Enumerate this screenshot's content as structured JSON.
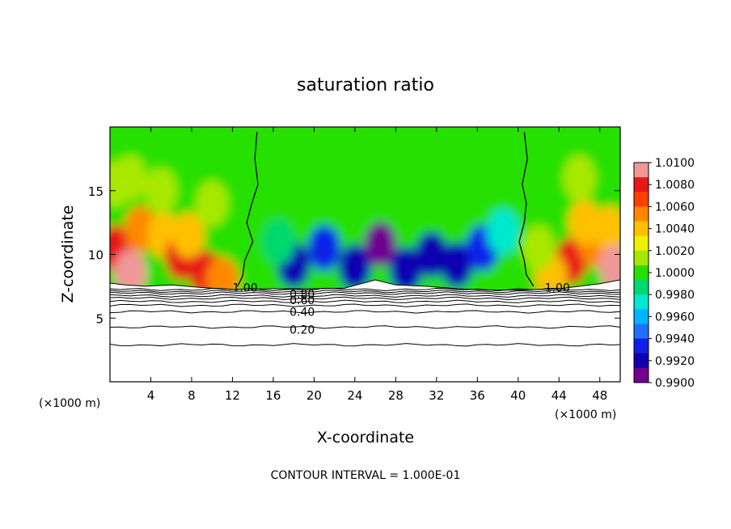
{
  "chart_data": {
    "type": "heatmap",
    "title": "saturation ratio",
    "xlabel": "X-coordinate",
    "ylabel": "Z-coordinate",
    "x_unit_label": "(×1000 m)",
    "y_unit_label": "(×1000 m)",
    "xlim": [
      0,
      50
    ],
    "ylim": [
      0,
      20
    ],
    "x_ticks": [
      4,
      8,
      12,
      16,
      20,
      24,
      28,
      32,
      36,
      40,
      44,
      48
    ],
    "y_ticks": [
      5,
      10,
      15
    ],
    "footer": "CONTOUR INTERVAL = 1.000E-01",
    "colorbar": {
      "min": 0.99,
      "max": 1.01,
      "tick_labels": [
        "1.0100",
        "1.0080",
        "1.0060",
        "1.0040",
        "1.0020",
        "1.0000",
        "0.9980",
        "0.9960",
        "0.9940",
        "0.9920",
        "0.9900"
      ],
      "colors": [
        "#f09898",
        "#e81818",
        "#ff4000",
        "#ff8800",
        "#ffc000",
        "#f0f000",
        "#a8e800",
        "#28e000",
        "#00d870",
        "#00e8d0",
        "#00b4ff",
        "#2070ff",
        "#1020e8",
        "#1000b0",
        "#700090"
      ]
    },
    "contour_labels": [
      {
        "text": "1.00",
        "x": 12.0,
        "z": 7.4
      },
      {
        "text": "1.00",
        "x": 42.6,
        "z": 7.4
      },
      {
        "text": "0.80",
        "x": 17.6,
        "z": 6.9
      },
      {
        "text": "0.60",
        "x": 17.6,
        "z": 6.4
      },
      {
        "text": "0.40",
        "x": 17.6,
        "z": 5.5
      },
      {
        "text": "0.20",
        "x": 17.6,
        "z": 4.1
      }
    ],
    "contour_levels_below": [
      {
        "z": 7.25
      },
      {
        "z": 7.1
      },
      {
        "z": 6.95
      },
      {
        "z": 6.75
      },
      {
        "z": 6.55
      },
      {
        "z": 6.3
      },
      {
        "z": 6.0
      },
      {
        "z": 5.5
      },
      {
        "z": 4.3
      },
      {
        "z": 2.9
      }
    ],
    "boundary_lines": [
      {
        "points": [
          [
            14.4,
            19.6
          ],
          [
            14.2,
            17.5
          ],
          [
            14.5,
            15.5
          ],
          [
            13.9,
            14.0
          ],
          [
            13.4,
            12.5
          ],
          [
            14.0,
            11.0
          ],
          [
            13.2,
            9.5
          ],
          [
            13.0,
            8.3
          ],
          [
            12.5,
            7.5
          ]
        ]
      },
      {
        "points": [
          [
            40.6,
            19.6
          ],
          [
            40.9,
            17.5
          ],
          [
            40.4,
            15.5
          ],
          [
            40.8,
            14.0
          ],
          [
            40.6,
            12.5
          ],
          [
            40.1,
            11.0
          ],
          [
            40.6,
            9.5
          ],
          [
            40.8,
            8.4
          ],
          [
            41.5,
            7.5
          ]
        ]
      }
    ],
    "anomalies": [
      {
        "x": 0.5,
        "z": 10.5,
        "value": 1.0085
      },
      {
        "x": 2.0,
        "z": 8.6,
        "value": 1.0095
      },
      {
        "x": 3.0,
        "z": 12.0,
        "value": 1.0052
      },
      {
        "x": 5.3,
        "z": 11.5,
        "value": 1.0045
      },
      {
        "x": 7.0,
        "z": 9.8,
        "value": 1.0078
      },
      {
        "x": 7.7,
        "z": 11.5,
        "value": 1.004
      },
      {
        "x": 9.4,
        "z": 8.5,
        "value": 1.008
      },
      {
        "x": 11.0,
        "z": 8.0,
        "value": 1.005
      },
      {
        "x": 5.0,
        "z": 15.0,
        "value": 1.0014
      },
      {
        "x": 2.0,
        "z": 16.0,
        "value": 1.0012
      },
      {
        "x": 10.0,
        "z": 14.0,
        "value": 1.0009
      },
      {
        "x": 0.5,
        "z": 15.5,
        "value": 1.0012
      },
      {
        "x": 25.0,
        "z": 16.5,
        "value": 0.99945
      },
      {
        "x": 34.0,
        "z": 16.0,
        "value": 0.9996
      },
      {
        "x": 19.0,
        "z": 12.5,
        "value": 0.9994
      },
      {
        "x": 20.5,
        "z": 14.5,
        "value": 0.9998
      },
      {
        "x": 18.0,
        "z": 9.2,
        "value": 0.9925
      },
      {
        "x": 21.0,
        "z": 10.5,
        "value": 0.994
      },
      {
        "x": 24.0,
        "z": 9.0,
        "value": 0.992
      },
      {
        "x": 26.5,
        "z": 10.8,
        "value": 0.9905
      },
      {
        "x": 29.0,
        "z": 8.8,
        "value": 0.9925
      },
      {
        "x": 31.5,
        "z": 10.0,
        "value": 0.992
      },
      {
        "x": 34.0,
        "z": 9.2,
        "value": 0.9915
      },
      {
        "x": 36.5,
        "z": 10.5,
        "value": 0.9935
      },
      {
        "x": 38.5,
        "z": 11.8,
        "value": 0.9978
      },
      {
        "x": 16.5,
        "z": 11.0,
        "value": 0.9982
      },
      {
        "x": 45.2,
        "z": 9.5,
        "value": 1.0082
      },
      {
        "x": 47.5,
        "z": 10.8,
        "value": 1.006
      },
      {
        "x": 46.5,
        "z": 12.5,
        "value": 1.0036
      },
      {
        "x": 49.0,
        "z": 12.0,
        "value": 1.004
      },
      {
        "x": 49.5,
        "z": 9.0,
        "value": 1.009
      },
      {
        "x": 43.2,
        "z": 8.3,
        "value": 1.0045
      },
      {
        "x": 42.0,
        "z": 10.5,
        "value": 1.0011
      },
      {
        "x": 46.0,
        "z": 16.0,
        "value": 1.0008
      }
    ],
    "ground": [
      [
        0,
        7.75
      ],
      [
        1.5,
        7.6
      ],
      [
        3.5,
        7.5
      ],
      [
        6.0,
        7.6
      ],
      [
        9.0,
        7.4
      ],
      [
        12.0,
        7.25
      ],
      [
        16.0,
        7.3
      ],
      [
        20.0,
        7.3
      ],
      [
        23.0,
        7.35
      ],
      [
        26.0,
        8.0
      ],
      [
        28.0,
        7.6
      ],
      [
        31.0,
        7.5
      ],
      [
        34.0,
        7.3
      ],
      [
        37.0,
        7.2
      ],
      [
        40.0,
        7.2
      ],
      [
        44.0,
        7.3
      ],
      [
        48.0,
        7.7
      ],
      [
        50.0,
        8.0
      ]
    ]
  }
}
